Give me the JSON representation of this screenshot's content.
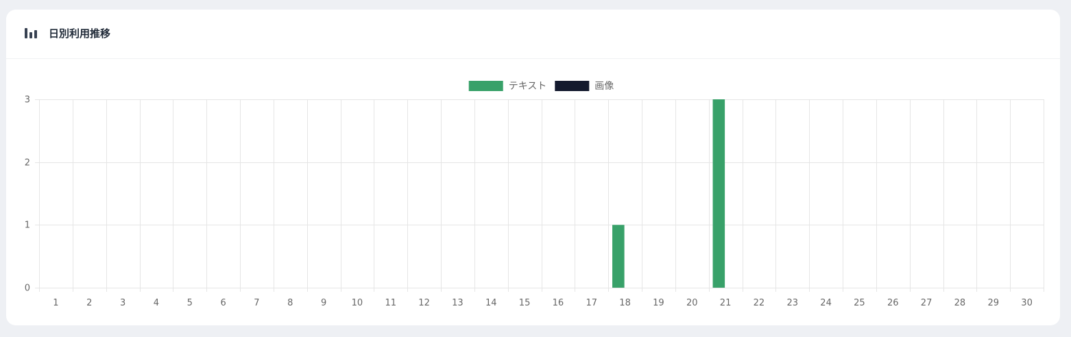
{
  "card": {
    "title": "日別利用推移",
    "icon": "bar-chart-icon"
  },
  "chart_data": {
    "type": "bar",
    "categories": [
      "1",
      "2",
      "3",
      "4",
      "5",
      "6",
      "7",
      "8",
      "9",
      "10",
      "11",
      "12",
      "13",
      "14",
      "15",
      "16",
      "17",
      "18",
      "19",
      "20",
      "21",
      "22",
      "23",
      "24",
      "25",
      "26",
      "27",
      "28",
      "29",
      "30"
    ],
    "series": [
      {
        "name": "テキスト",
        "color": "#38a169",
        "values": [
          0,
          0,
          0,
          0,
          0,
          0,
          0,
          0,
          0,
          0,
          0,
          0,
          0,
          0,
          0,
          0,
          0,
          1,
          0,
          0,
          3,
          0,
          0,
          0,
          0,
          0,
          0,
          0,
          0,
          0
        ]
      },
      {
        "name": "画像",
        "color": "#141a2e",
        "values": [
          0,
          0,
          0,
          0,
          0,
          0,
          0,
          0,
          0,
          0,
          0,
          0,
          0,
          0,
          0,
          0,
          0,
          0,
          0,
          0,
          0,
          0,
          0,
          0,
          0,
          0,
          0,
          0,
          0,
          0
        ]
      }
    ],
    "ylim": [
      0,
      3
    ],
    "yticks": [
      "0",
      "1",
      "2",
      "3"
    ],
    "grid": true,
    "legend": "top-center"
  }
}
